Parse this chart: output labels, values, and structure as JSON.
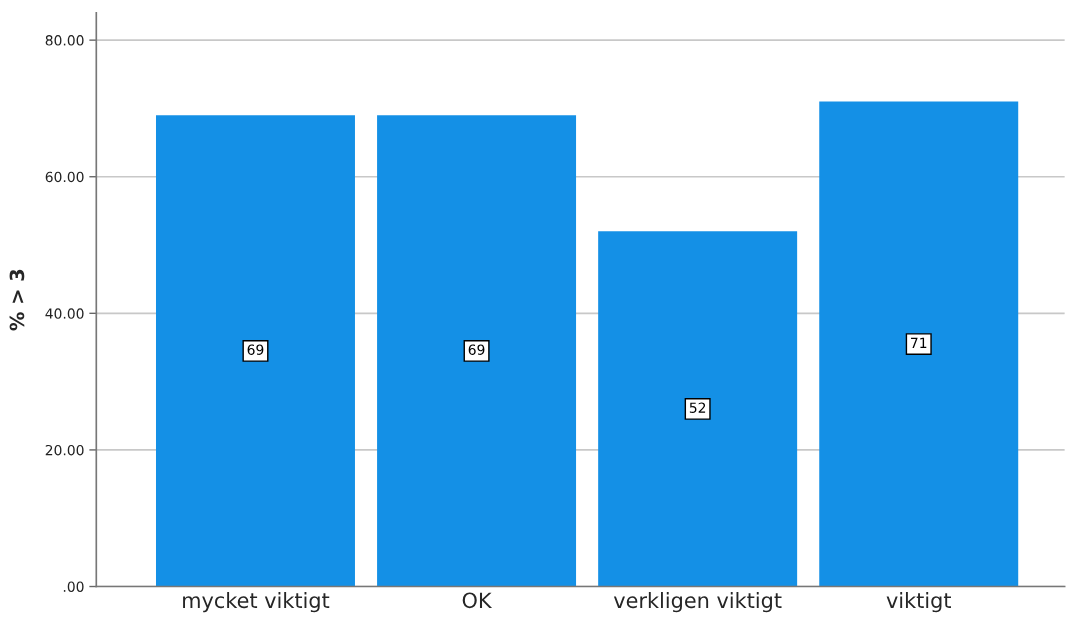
{
  "chart_data": {
    "type": "bar",
    "ylabel": "% > 3",
    "categories": [
      "mycket viktigt",
      "OK",
      "verkligen viktigt",
      "viktigt"
    ],
    "values": [
      69,
      69,
      52,
      71
    ],
    "color": "#1490e6",
    "data_labels": true,
    "ylim": [
      0,
      84
    ],
    "yticks": [
      {
        "value": 0,
        "label": ".00"
      },
      {
        "value": 20,
        "label": "20.00"
      },
      {
        "value": 40,
        "label": "40.00"
      },
      {
        "value": 60,
        "label": "60.00"
      },
      {
        "value": 80,
        "label": "80.00"
      }
    ],
    "grid": "y"
  }
}
